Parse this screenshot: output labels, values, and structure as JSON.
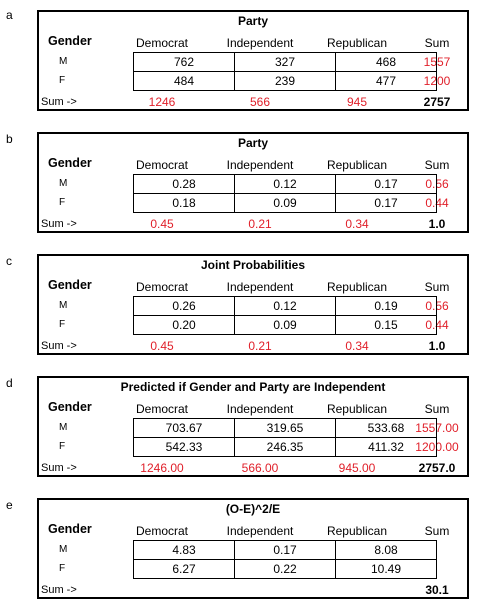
{
  "panels": [
    {
      "letter": "a",
      "title": "Party",
      "gender_label": "Gender",
      "columns": [
        "Democrat",
        "Independent",
        "Republican"
      ],
      "sum_label": "Sum",
      "rows": [
        {
          "label": "M",
          "values": [
            "762",
            "327",
            "468"
          ],
          "sum": "1557"
        },
        {
          "label": "F",
          "values": [
            "484",
            "239",
            "477"
          ],
          "sum": "1200"
        }
      ],
      "sum_row_label": "Sum ->",
      "col_sums": [
        "1246",
        "566",
        "945"
      ],
      "total": "2757"
    },
    {
      "letter": "b",
      "title": "Party",
      "gender_label": "Gender",
      "columns": [
        "Democrat",
        "Independent",
        "Republican"
      ],
      "sum_label": "Sum",
      "rows": [
        {
          "label": "M",
          "values": [
            "0.28",
            "0.12",
            "0.17"
          ],
          "sum": "0.56"
        },
        {
          "label": "F",
          "values": [
            "0.18",
            "0.09",
            "0.17"
          ],
          "sum": "0.44"
        }
      ],
      "sum_row_label": "Sum ->",
      "col_sums": [
        "0.45",
        "0.21",
        "0.34"
      ],
      "total": "1.0"
    },
    {
      "letter": "c",
      "title": "Joint Probabilities",
      "gender_label": "Gender",
      "columns": [
        "Democrat",
        "Independent",
        "Republican"
      ],
      "sum_label": "Sum",
      "rows": [
        {
          "label": "M",
          "values": [
            "0.26",
            "0.12",
            "0.19"
          ],
          "sum": "0.56"
        },
        {
          "label": "F",
          "values": [
            "0.20",
            "0.09",
            "0.15"
          ],
          "sum": "0.44"
        }
      ],
      "sum_row_label": "Sum ->",
      "col_sums": [
        "0.45",
        "0.21",
        "0.34"
      ],
      "total": "1.0"
    },
    {
      "letter": "d",
      "title": "Predicted if Gender and Party are Independent",
      "gender_label": "Gender",
      "columns": [
        "Democrat",
        "Independent",
        "Republican"
      ],
      "sum_label": "Sum",
      "rows": [
        {
          "label": "M",
          "values": [
            "703.67",
            "319.65",
            "533.68"
          ],
          "sum": "1557.00"
        },
        {
          "label": "F",
          "values": [
            "542.33",
            "246.35",
            "411.32"
          ],
          "sum": "1200.00"
        }
      ],
      "sum_row_label": "Sum ->",
      "col_sums": [
        "1246.00",
        "566.00",
        "945.00"
      ],
      "total": "2757.0"
    },
    {
      "letter": "e",
      "title": "(O-E)^2/E",
      "gender_label": "Gender",
      "columns": [
        "Democrat",
        "Independent",
        "Republican"
      ],
      "sum_label": "Sum",
      "rows": [
        {
          "label": "M",
          "values": [
            "4.83",
            "0.17",
            "8.08"
          ],
          "sum": ""
        },
        {
          "label": "F",
          "values": [
            "6.27",
            "0.22",
            "10.49"
          ],
          "sum": ""
        }
      ],
      "sum_row_label": "Sum ->",
      "col_sums": [
        "",
        "",
        ""
      ],
      "total": "30.1"
    }
  ],
  "colors": {
    "sum_text": "#e0202a",
    "border": "#000000"
  }
}
